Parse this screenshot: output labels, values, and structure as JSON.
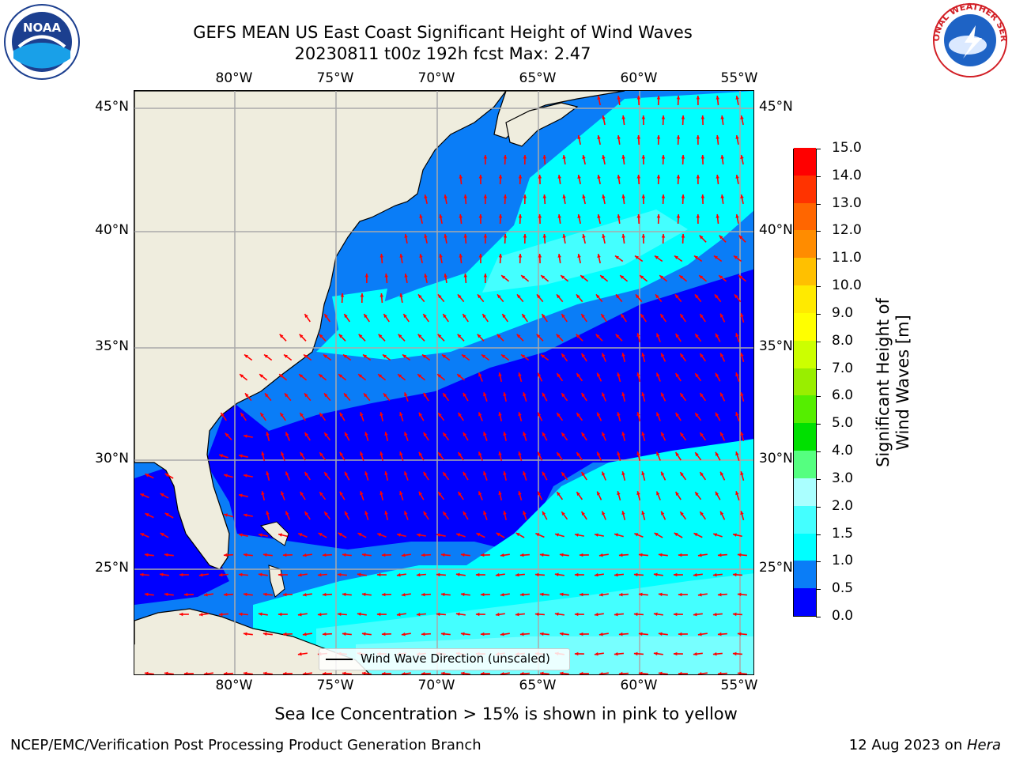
{
  "header": {
    "title_line1": "GEFS MEAN US East Coast Significant Height of Wind Waves",
    "title_line2": "20230811 t00z 192h fcst   Max: 2.47"
  },
  "logos": {
    "left": "noaa-logo",
    "left_text": "NOAA",
    "right": "national-weather-service-logo",
    "right_text": "NATIONAL WEATHER SERVICE"
  },
  "map": {
    "lon_labels": [
      "80°W",
      "75°W",
      "70°W",
      "65°W",
      "60°W",
      "55°W"
    ],
    "lat_labels": [
      "45°N",
      "40°N",
      "35°N",
      "30°N",
      "25°N"
    ],
    "lon_range": [
      -85,
      -54.3
    ],
    "lat_range": [
      20.5,
      45.8
    ],
    "land_color": "#efedde",
    "legend_label": "Wind Wave Direction (unscaled)",
    "arrow_color": "#ff0000"
  },
  "colorbar": {
    "title": "Significant Height of Wind Waves [m]",
    "ticks": [
      "0.0",
      "0.5",
      "1.0",
      "1.5",
      "2.0",
      "3.0",
      "4.0",
      "5.0",
      "6.0",
      "7.0",
      "8.0",
      "9.0",
      "10.0",
      "11.0",
      "12.0",
      "13.0",
      "14.0",
      "15.0"
    ],
    "colors": [
      "#0000ff",
      "#0a7df7",
      "#00ffff",
      "#44ffff",
      "#aaffff",
      "#55ff80",
      "#00e000",
      "#55ee00",
      "#99ee00",
      "#ccff00",
      "#ffff00",
      "#ffea00",
      "#ffc000",
      "#ff8c00",
      "#ff6600",
      "#ff3300",
      "#ff0000"
    ]
  },
  "footer": {
    "note": "Sea Ice Concentration > 15% is shown in pink to yellow",
    "branch": "NCEP/EMC/Verification Post Processing Product Generation Branch",
    "date": "12 Aug 2023 on ",
    "host": "Hera"
  }
}
